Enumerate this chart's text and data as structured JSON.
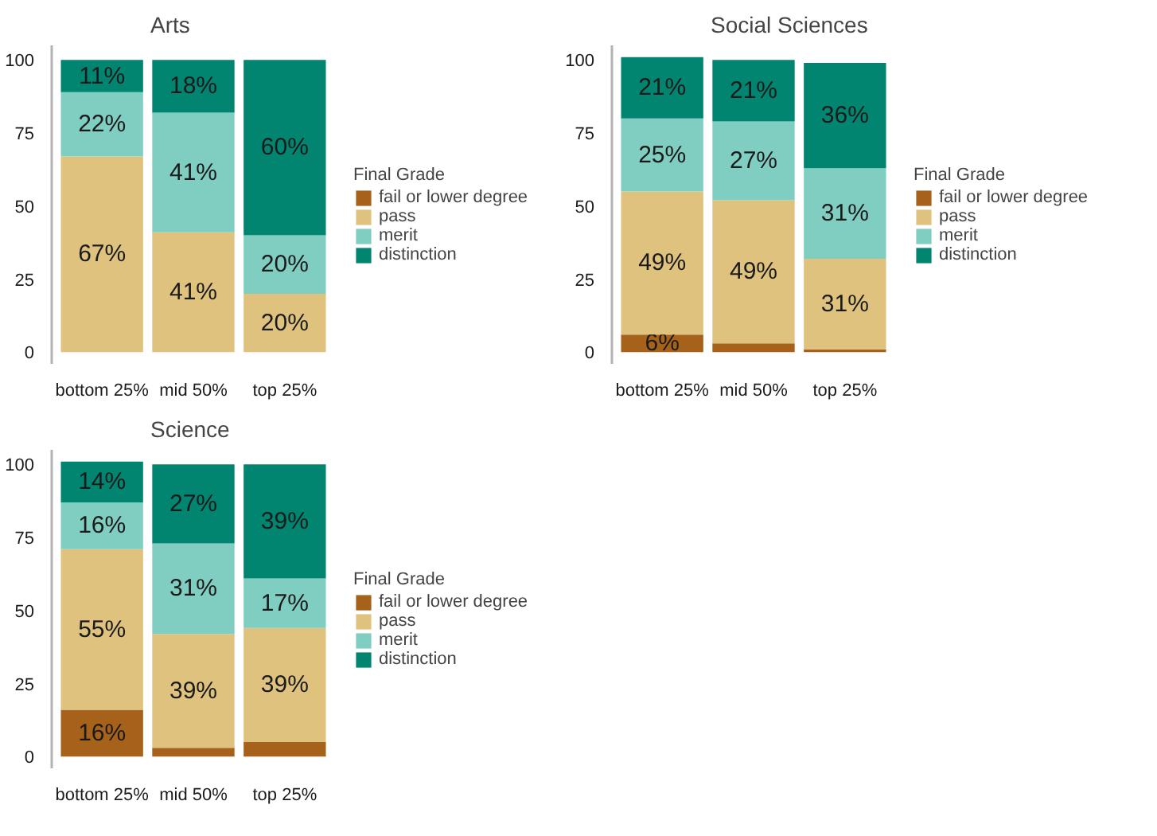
{
  "chart_data": [
    {
      "type": "bar",
      "title": "Arts",
      "categories": [
        "bottom 25%",
        "mid 50%",
        "top 25%"
      ],
      "stacked": true,
      "ylim": [
        -4,
        105
      ],
      "yticks": [
        0,
        25,
        50,
        75,
        100
      ],
      "legend": "right",
      "legend_title": "Final Grade",
      "grid": false,
      "series": [
        {
          "name": "fail or lower degree",
          "color": "#a6611a",
          "values": [
            0,
            0,
            0
          ],
          "value_labels": [
            null,
            null,
            null
          ]
        },
        {
          "name": "pass",
          "color": "#dfc27d",
          "values": [
            67,
            41,
            20
          ],
          "value_labels": [
            "67%",
            "41%",
            "20%"
          ]
        },
        {
          "name": "merit",
          "color": "#80cdc1",
          "values": [
            22,
            41,
            20
          ],
          "value_labels": [
            "22%",
            "41%",
            "20%"
          ]
        },
        {
          "name": "distinction",
          "color": "#018571",
          "values": [
            11,
            18,
            60
          ],
          "value_labels": [
            "11%",
            "18%",
            "60%"
          ]
        }
      ]
    },
    {
      "type": "bar",
      "title": "Social Sciences",
      "categories": [
        "bottom 25%",
        "mid 50%",
        "top 25%"
      ],
      "stacked": true,
      "ylim": [
        -4,
        105
      ],
      "yticks": [
        0,
        25,
        50,
        75,
        100
      ],
      "legend": "right",
      "legend_title": "Final Grade",
      "grid": false,
      "series": [
        {
          "name": "fail or lower degree",
          "color": "#a6611a",
          "values": [
            6,
            3,
            1
          ],
          "value_labels": [
            "6%",
            null,
            null
          ]
        },
        {
          "name": "pass",
          "color": "#dfc27d",
          "values": [
            49,
            49,
            31
          ],
          "value_labels": [
            "49%",
            "49%",
            "31%"
          ]
        },
        {
          "name": "merit",
          "color": "#80cdc1",
          "values": [
            25,
            27,
            31
          ],
          "value_labels": [
            "25%",
            "27%",
            "31%"
          ]
        },
        {
          "name": "distinction",
          "color": "#018571",
          "values": [
            21,
            21,
            36
          ],
          "value_labels": [
            "21%",
            "21%",
            "36%"
          ]
        }
      ]
    },
    {
      "type": "bar",
      "title": "Science",
      "categories": [
        "bottom 25%",
        "mid 50%",
        "top 25%"
      ],
      "stacked": true,
      "ylim": [
        -4,
        105
      ],
      "yticks": [
        0,
        25,
        50,
        75,
        100
      ],
      "legend": "right",
      "legend_title": "Final Grade",
      "grid": false,
      "series": [
        {
          "name": "fail or lower degree",
          "color": "#a6611a",
          "values": [
            16,
            3,
            5
          ],
          "value_labels": [
            "16%",
            null,
            null
          ]
        },
        {
          "name": "pass",
          "color": "#dfc27d",
          "values": [
            55,
            39,
            39
          ],
          "value_labels": [
            "55%",
            "39%",
            "39%"
          ]
        },
        {
          "name": "merit",
          "color": "#80cdc1",
          "values": [
            16,
            31,
            17
          ],
          "value_labels": [
            "16%",
            "31%",
            "17%"
          ]
        },
        {
          "name": "distinction",
          "color": "#018571",
          "values": [
            14,
            27,
            39
          ],
          "value_labels": [
            "14%",
            "27%",
            "39%"
          ]
        }
      ]
    }
  ]
}
